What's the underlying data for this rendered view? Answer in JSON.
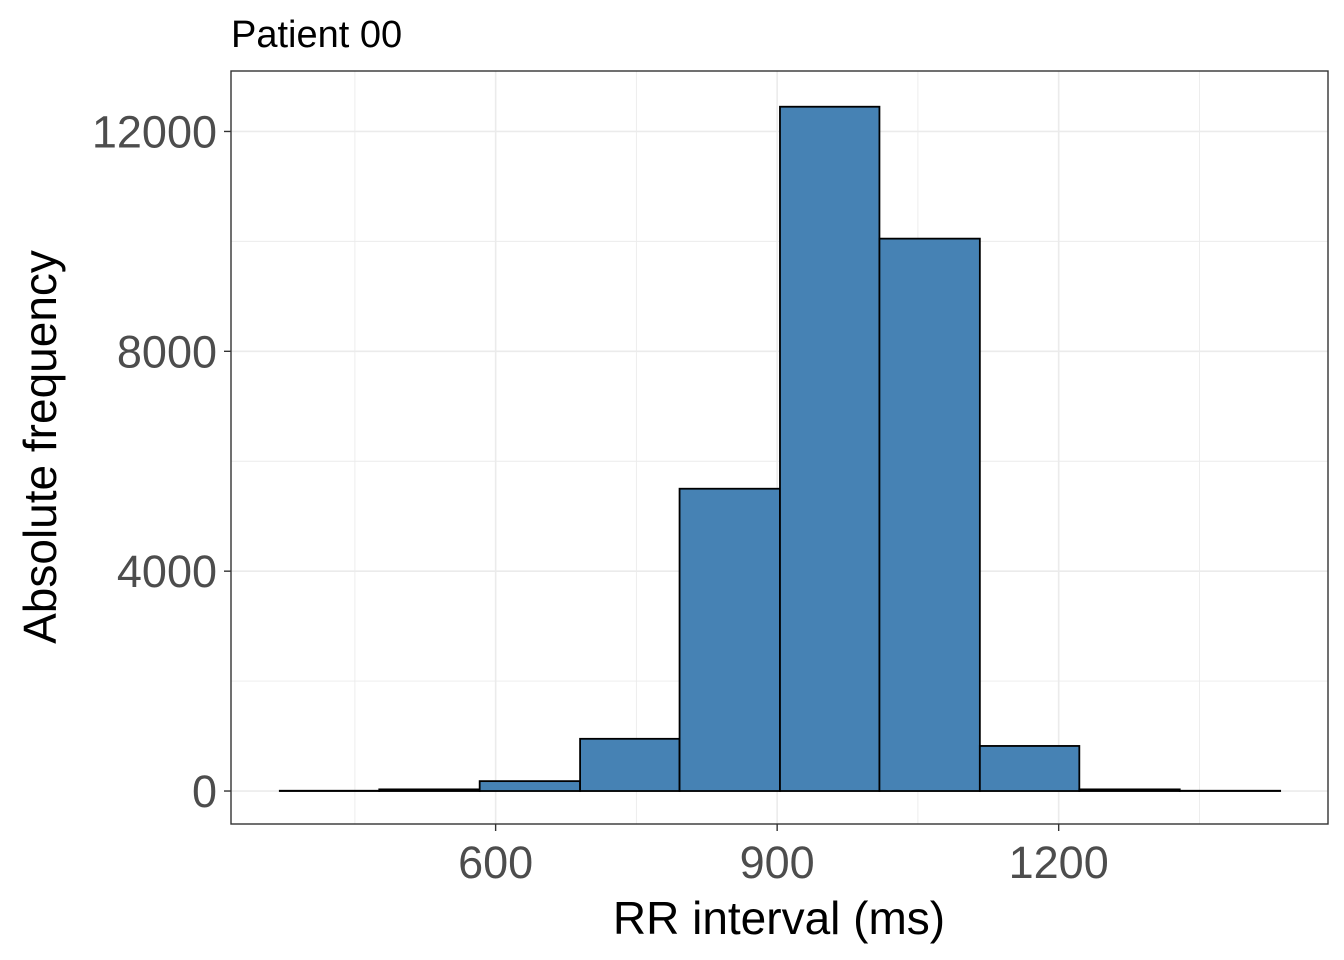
{
  "chart_data": {
    "type": "bar",
    "title": "Patient 00",
    "xlabel": "RR interval (ms)",
    "ylabel": "Absolute frequency",
    "bins": [
      {
        "x0": 370,
        "x1": 476,
        "count": 5
      },
      {
        "x0": 476,
        "x1": 583,
        "count": 30
      },
      {
        "x0": 583,
        "x1": 690,
        "count": 180
      },
      {
        "x0": 690,
        "x1": 796,
        "count": 950
      },
      {
        "x0": 796,
        "x1": 903,
        "count": 5500
      },
      {
        "x0": 903,
        "x1": 1009,
        "count": 12450
      },
      {
        "x0": 1009,
        "x1": 1116,
        "count": 10050
      },
      {
        "x0": 1116,
        "x1": 1222,
        "count": 820
      },
      {
        "x0": 1222,
        "x1": 1329,
        "count": 30
      },
      {
        "x0": 1329,
        "x1": 1436,
        "count": 5
      }
    ],
    "xticks": [
      600,
      900,
      1200
    ],
    "yticks": [
      0,
      4000,
      8000,
      12000
    ],
    "xlim": [
      318,
      1487
    ],
    "ylim": [
      -600,
      13100
    ],
    "grid": true,
    "colors": {
      "fill": "#4682B4",
      "outline": "#000000",
      "grid": "#EBEBEB",
      "tick_text": "#4D4D4D"
    }
  }
}
